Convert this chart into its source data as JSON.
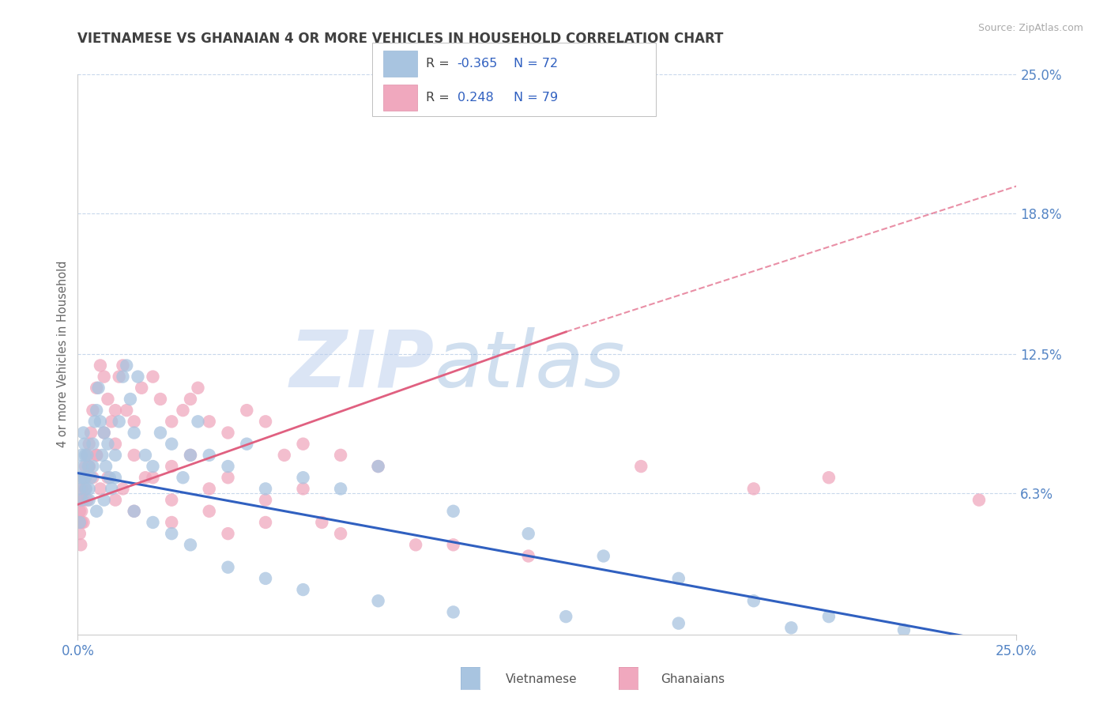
{
  "title": "VIETNAMESE VS GHANAIAN 4 OR MORE VEHICLES IN HOUSEHOLD CORRELATION CHART",
  "source_text": "Source: ZipAtlas.com",
  "ylabel": "4 or more Vehicles in Household",
  "xlim": [
    0.0,
    25.0
  ],
  "ylim": [
    0.0,
    25.0
  ],
  "ytick_vals": [
    6.3,
    12.5,
    18.8,
    25.0
  ],
  "ytick_labels": [
    "6.3%",
    "12.5%",
    "18.8%",
    "25.0%"
  ],
  "R_viet": -0.365,
  "N_viet": 72,
  "R_ghana": 0.248,
  "N_ghana": 79,
  "color_viet_dot": "#a8c4e0",
  "color_ghana_dot": "#f0a8be",
  "color_viet_line": "#3060c0",
  "color_ghana_line": "#e06080",
  "bg": "#ffffff",
  "grid_color": "#c8d8ec",
  "title_color": "#404040",
  "axis_tick_color": "#5585c5",
  "legend_text_color": "#4472c4",
  "legend_R_black": "#404040",
  "viet_x": [
    0.05,
    0.08,
    0.1,
    0.12,
    0.15,
    0.18,
    0.2,
    0.22,
    0.25,
    0.28,
    0.3,
    0.35,
    0.4,
    0.45,
    0.5,
    0.55,
    0.6,
    0.65,
    0.7,
    0.75,
    0.8,
    0.85,
    0.9,
    1.0,
    1.1,
    1.2,
    1.3,
    1.4,
    1.5,
    1.6,
    1.8,
    2.0,
    2.2,
    2.5,
    2.8,
    3.0,
    3.2,
    3.5,
    4.0,
    4.5,
    5.0,
    6.0,
    7.0,
    8.0,
    10.0,
    12.0,
    14.0,
    16.0,
    18.0,
    20.0,
    0.05,
    0.1,
    0.15,
    0.2,
    0.3,
    0.4,
    0.5,
    0.7,
    1.0,
    1.5,
    2.0,
    2.5,
    3.0,
    4.0,
    5.0,
    6.0,
    8.0,
    10.0,
    13.0,
    16.0,
    19.0,
    22.0
  ],
  "viet_y": [
    6.5,
    7.0,
    8.0,
    7.5,
    9.0,
    8.5,
    7.0,
    6.5,
    8.0,
    7.5,
    6.0,
    7.0,
    8.5,
    9.5,
    10.0,
    11.0,
    9.5,
    8.0,
    9.0,
    7.5,
    8.5,
    7.0,
    6.5,
    8.0,
    9.5,
    11.5,
    12.0,
    10.5,
    9.0,
    11.5,
    8.0,
    7.5,
    9.0,
    8.5,
    7.0,
    8.0,
    9.5,
    8.0,
    7.5,
    8.5,
    6.5,
    7.0,
    6.5,
    7.5,
    5.5,
    4.5,
    3.5,
    2.5,
    1.5,
    0.8,
    5.0,
    6.0,
    7.0,
    8.0,
    6.5,
    7.5,
    5.5,
    6.0,
    7.0,
    5.5,
    5.0,
    4.5,
    4.0,
    3.0,
    2.5,
    2.0,
    1.5,
    1.0,
    0.8,
    0.5,
    0.3,
    0.2
  ],
  "ghana_x": [
    0.05,
    0.08,
    0.1,
    0.15,
    0.2,
    0.25,
    0.3,
    0.35,
    0.4,
    0.5,
    0.6,
    0.7,
    0.8,
    0.9,
    1.0,
    1.1,
    1.2,
    1.3,
    1.5,
    1.7,
    2.0,
    2.2,
    2.5,
    2.8,
    3.0,
    3.2,
    3.5,
    4.0,
    4.5,
    5.0,
    5.5,
    6.0,
    7.0,
    8.0,
    0.05,
    0.1,
    0.15,
    0.2,
    0.3,
    0.5,
    0.7,
    1.0,
    1.5,
    2.0,
    2.5,
    3.0,
    3.5,
    4.0,
    5.0,
    6.0,
    0.05,
    0.1,
    0.2,
    0.3,
    0.5,
    0.8,
    1.2,
    1.8,
    2.5,
    3.5,
    5.0,
    7.0,
    10.0,
    0.08,
    0.15,
    0.25,
    0.4,
    0.6,
    1.0,
    1.5,
    2.5,
    4.0,
    6.5,
    9.0,
    12.0,
    15.0,
    18.0,
    20.0,
    24.0
  ],
  "ghana_y": [
    5.5,
    6.0,
    6.5,
    7.0,
    7.5,
    8.0,
    8.5,
    9.0,
    10.0,
    11.0,
    12.0,
    11.5,
    10.5,
    9.5,
    10.0,
    11.5,
    12.0,
    10.0,
    9.5,
    11.0,
    11.5,
    10.5,
    9.5,
    10.0,
    10.5,
    11.0,
    9.5,
    9.0,
    10.0,
    9.5,
    8.0,
    8.5,
    8.0,
    7.5,
    5.0,
    5.5,
    6.0,
    7.0,
    7.5,
    8.0,
    9.0,
    8.5,
    8.0,
    7.0,
    7.5,
    8.0,
    6.5,
    7.0,
    6.0,
    6.5,
    4.5,
    5.0,
    6.5,
    7.5,
    8.0,
    7.0,
    6.5,
    7.0,
    6.0,
    5.5,
    5.0,
    4.5,
    4.0,
    4.0,
    5.0,
    6.0,
    7.0,
    6.5,
    6.0,
    5.5,
    5.0,
    4.5,
    5.0,
    4.0,
    3.5,
    7.5,
    6.5,
    7.0,
    6.0
  ],
  "viet_line_x0": 0.0,
  "viet_line_y0": 7.2,
  "viet_line_x1": 25.0,
  "viet_line_y1": -0.5,
  "ghana_solid_x0": 0.0,
  "ghana_solid_y0": 5.8,
  "ghana_solid_x1": 13.0,
  "ghana_solid_y1": 13.5,
  "ghana_dash_x0": 13.0,
  "ghana_dash_y0": 13.5,
  "ghana_dash_x1": 25.0,
  "ghana_dash_y1": 20.0
}
